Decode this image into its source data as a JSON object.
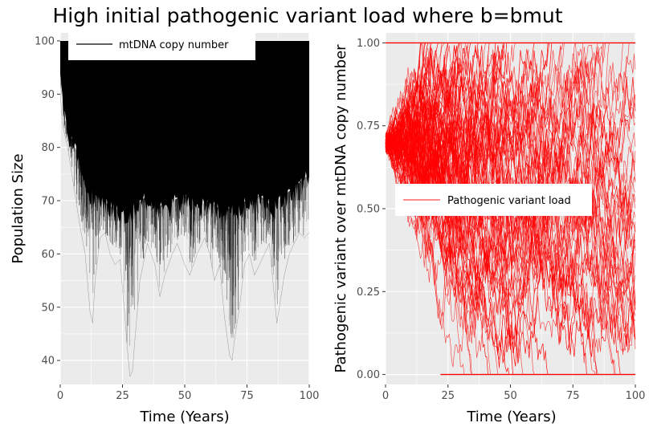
{
  "title": "High initial pathogenic variant load where b=bmut",
  "colors": {
    "panel_bg": "#ebebeb",
    "grid": "#ffffff",
    "copy_number": "#000000",
    "variant_load": "#ff0000",
    "text": "#000000",
    "tick_text": "#4d4d4d",
    "legend_bg": "#ffffff"
  },
  "chart_data": [
    {
      "type": "line",
      "xlabel": "Time (Years)",
      "ylabel": "Population Size",
      "xlim": [
        0,
        100
      ],
      "ylim": [
        35.5,
        101.5
      ],
      "xticks": [
        0,
        25,
        50,
        75,
        100
      ],
      "yticks": [
        40,
        50,
        60,
        70,
        80,
        90,
        100
      ],
      "xtick_labels": [
        "0",
        "25",
        "50",
        "75",
        "100"
      ],
      "ytick_labels": [
        "40",
        "50",
        "60",
        "70",
        "80",
        "90",
        "100"
      ],
      "legend": {
        "position": "top-left",
        "entries": [
          "mtDNA copy number"
        ]
      },
      "grid": true,
      "series": [
        {
          "name": "mtDNA copy number",
          "description_of_envelope": "many overlaid stochastic trajectories",
          "upper": [
            [
              0,
              100
            ],
            [
              100,
              100
            ]
          ],
          "lower": [
            [
              0,
              90
            ],
            [
              1,
              84
            ],
            [
              3,
              80
            ],
            [
              5,
              74
            ],
            [
              8,
              65
            ],
            [
              10,
              60
            ],
            [
              12,
              49
            ],
            [
              13,
              47
            ],
            [
              14,
              55
            ],
            [
              16,
              63
            ],
            [
              18,
              64
            ],
            [
              20,
              60
            ],
            [
              22,
              58
            ],
            [
              24,
              59
            ],
            [
              26,
              48
            ],
            [
              27,
              42
            ],
            [
              28,
              37
            ],
            [
              29,
              38
            ],
            [
              30,
              44
            ],
            [
              32,
              55
            ],
            [
              35,
              62
            ],
            [
              38,
              58
            ],
            [
              40,
              52
            ],
            [
              42,
              56
            ],
            [
              45,
              60
            ],
            [
              47,
              62
            ],
            [
              50,
              58
            ],
            [
              52,
              56
            ],
            [
              55,
              60
            ],
            [
              58,
              63
            ],
            [
              60,
              60
            ],
            [
              62,
              55
            ],
            [
              64,
              58
            ],
            [
              66,
              48
            ],
            [
              68,
              41
            ],
            [
              69,
              40
            ],
            [
              70,
              44
            ],
            [
              72,
              50
            ],
            [
              74,
              58
            ],
            [
              76,
              60
            ],
            [
              78,
              56
            ],
            [
              80,
              58
            ],
            [
              82,
              60
            ],
            [
              84,
              62
            ],
            [
              86,
              52
            ],
            [
              87,
              47
            ],
            [
              88,
              50
            ],
            [
              90,
              56
            ],
            [
              92,
              60
            ],
            [
              94,
              62
            ],
            [
              96,
              64
            ],
            [
              98,
              63
            ],
            [
              100,
              64
            ]
          ],
          "dense_floor": [
            [
              0,
              95
            ],
            [
              2,
              84
            ],
            [
              5,
              80
            ],
            [
              8,
              77
            ],
            [
              10,
              72
            ],
            [
              15,
              70
            ],
            [
              20,
              68
            ],
            [
              25,
              67
            ],
            [
              30,
              68
            ],
            [
              35,
              70
            ],
            [
              40,
              68
            ],
            [
              45,
              69
            ],
            [
              50,
              70
            ],
            [
              55,
              68
            ],
            [
              60,
              69
            ],
            [
              65,
              67
            ],
            [
              70,
              68
            ],
            [
              75,
              69
            ],
            [
              80,
              70
            ],
            [
              85,
              68
            ],
            [
              90,
              70
            ],
            [
              95,
              72
            ],
            [
              100,
              74
            ]
          ]
        }
      ]
    },
    {
      "type": "line",
      "xlabel": "Time (Years)",
      "ylabel": "Pathogenic variant over mtDNA copy number",
      "xlim": [
        0,
        100
      ],
      "ylim": [
        -0.03,
        1.03
      ],
      "xticks": [
        0,
        25,
        50,
        75,
        100
      ],
      "yticks": [
        0,
        0.25,
        0.5,
        0.75,
        1.0
      ],
      "xtick_labels": [
        "0",
        "25",
        "50",
        "75",
        "100"
      ],
      "ytick_labels": [
        "0.00",
        "0.25",
        "0.50",
        "0.75",
        "1.00"
      ],
      "legend": {
        "position": "center-left",
        "entries": [
          "Pathogenic variant load"
        ]
      },
      "grid": true,
      "series": [
        {
          "name": "Pathogenic variant load",
          "initial_value": 0.7,
          "upper_bound": 1.0,
          "lower_bound": 0.0
        }
      ]
    }
  ]
}
